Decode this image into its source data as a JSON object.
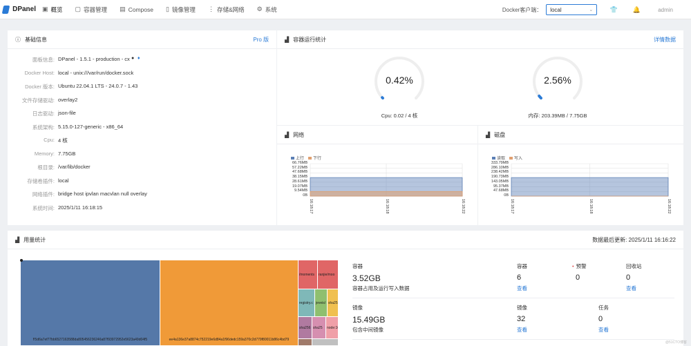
{
  "app": {
    "name": "DPanel"
  },
  "nav": [
    {
      "label": "概览",
      "icon": "dashboard-icon",
      "glyph": "▣"
    },
    {
      "label": "容器管理",
      "icon": "container-icon",
      "glyph": "▢"
    },
    {
      "label": "Compose",
      "icon": "compose-icon",
      "glyph": "▤"
    },
    {
      "label": "镜像管理",
      "icon": "image-icon",
      "glyph": "▯"
    },
    {
      "label": "存储&网络",
      "icon": "storage-icon",
      "glyph": "⋮"
    },
    {
      "label": "系统",
      "icon": "gear-icon",
      "glyph": "⚙"
    }
  ],
  "header": {
    "docker_label": "Docker客户端：",
    "docker_value": "local",
    "user": "admin"
  },
  "basic_info": {
    "title": "基础信息",
    "link": "Pro 版",
    "rows": [
      {
        "label": "面板信息:",
        "value": "DPanel - 1.5.1 - production - cx"
      },
      {
        "label": "Docker Host:",
        "value": "local - unix:///var/run/docker.sock"
      },
      {
        "label": "Docker 版本:",
        "value": "Ubuntu 22.04.1 LTS - 24.0.7 - 1.43"
      },
      {
        "label": "文件存储驱动:",
        "value": "overlay2"
      },
      {
        "label": "日志驱动:",
        "value": "json-file"
      },
      {
        "label": "系统架构:",
        "value": "5.15.0-127-generic - x86_64"
      },
      {
        "label": "Cpu:",
        "value": "4 核"
      },
      {
        "label": "Memory:",
        "value": "7.75GB"
      },
      {
        "label": "根目录:",
        "value": "/var/lib/docker"
      },
      {
        "label": "存储卷插件:",
        "value": "local"
      },
      {
        "label": "网络插件:",
        "value": "bridge  host  ipvlan  macvlan  null  overlay"
      },
      {
        "label": "系统时间:",
        "value": "2025/1/11 16:18:15"
      }
    ]
  },
  "runtime": {
    "title": "容器运行统计",
    "link": "详情数据",
    "cpu": {
      "percent": 0.42,
      "display": "0.42%",
      "caption": "Cpu: 0.02 / 4 核"
    },
    "mem": {
      "percent": 2.56,
      "display": "2.56%",
      "caption": "内存: 203.39MB / 7.75GB"
    },
    "colors": {
      "track": "#eeeeee",
      "fill": "#2b7bd6"
    }
  },
  "network": {
    "title": "网络",
    "legend": [
      "上行",
      "下行"
    ],
    "colors": [
      "#5b7fb5",
      "#e0a070"
    ],
    "yticks": [
      "66.76MB",
      "57.22MB",
      "47.68MB",
      "38.15MB",
      "28.61MB",
      "19.07MB",
      "9.54MB",
      "0B"
    ],
    "xticks": [
      "16:18:17",
      "16:18:18",
      "16:18:22"
    ],
    "series": [
      {
        "name": "上行",
        "values": [
          38.15,
          38.15,
          38.15
        ]
      },
      {
        "name": "下行",
        "values": [
          9.54,
          9.54,
          9.54
        ]
      }
    ],
    "ymax": 66.76
  },
  "disk": {
    "title": "磁盘",
    "legend": [
      "读取",
      "写入"
    ],
    "colors": [
      "#5b7fb5",
      "#e0a070"
    ],
    "yticks": [
      "333.79MB",
      "286.10MB",
      "238.42MB",
      "190.73MB",
      "143.05MB",
      "95.37MB",
      "47.68MB",
      "0B"
    ],
    "xticks": [
      "16:18:17",
      "16:18:18",
      "16:18:22"
    ],
    "series": [
      {
        "name": "读取",
        "values": [
          190.73,
          190.73,
          190.73
        ]
      },
      {
        "name": "写入",
        "values": [
          0,
          0,
          0
        ]
      }
    ],
    "ymax": 333.79
  },
  "usage": {
    "title": "用量统计",
    "updated": "数据最后更新: 2025/1/11 16:16:22",
    "treemap": {
      "cells": [
        {
          "label": "f!5d6a7ef77bb6527163588da805456236246a87f93972952e5623a49d04f5",
          "color": "#5578a8"
        },
        {
          "label": "ee4a136e37a8874c752219e6d84a1f96dedc159a370c2d779f80011b86c4bd79",
          "color": "#f09a38"
        },
        {
          "label": "/moments",
          "color": "#e06666"
        },
        {
          "label": "ranjie/moo",
          "color": "#e06666"
        },
        {
          "label": "registry.c",
          "color": "#7fb8b8"
        },
        {
          "label": "jeveis/",
          "color": "#8fbf6f"
        },
        {
          "label": "sha25",
          "color": "#f0c050"
        },
        {
          "label": "sha256",
          "color": "#b07aa0"
        },
        {
          "label": "sha25",
          "color": "#d68fb0"
        },
        {
          "label": "node:16",
          "color": "#f0a0a8"
        },
        {
          "label": "",
          "color": "#a07a6a"
        },
        {
          "label": "",
          "color": "#c0c0c0"
        }
      ]
    },
    "sections": {
      "container_label": "容器",
      "container_size": "3.52GB",
      "container_desc": "容器占用及运行写入数据",
      "image_label": "镜像",
      "image_size": "15.49GB",
      "image_desc": "包含中间镜像",
      "col_container": "容器",
      "col_container_val": "6",
      "col_warning": "预警",
      "col_warning_val": "0",
      "col_recycle": "回收站",
      "col_recycle_val": "0",
      "col_image": "镜像",
      "col_image_val": "32",
      "col_task": "任务",
      "col_task_val": "0",
      "link": "查看"
    }
  },
  "watermark": "@51CTO博客"
}
